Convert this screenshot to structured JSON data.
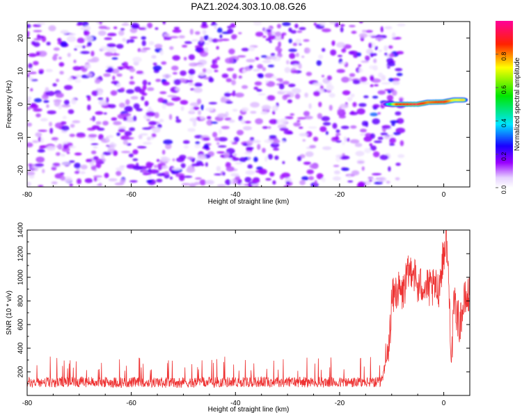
{
  "title": "PAZ1.2024.303.10.08.G26",
  "chart_data": [
    {
      "type": "heatmap",
      "xlabel": "Height of straight line (km)",
      "ylabel": "Frequency (Hz)",
      "xlim": [
        -80,
        5
      ],
      "ylim": [
        -25,
        25
      ],
      "xticks": [
        "-80",
        "-60",
        "-40",
        "-20",
        "0"
      ],
      "yticks": [
        "-20",
        "-10",
        "0",
        "10",
        "20"
      ],
      "colorbar": {
        "label": "Normalized spectral amplitude",
        "range": [
          0.0,
          1.0
        ],
        "ticks": [
          "0.0",
          "0.2",
          "0.4",
          "0.6",
          "0.8"
        ],
        "colormap": "rainbow (white-violet-blue-cyan-green-yellow-red-magenta)"
      },
      "features": {
        "noise_region_x": [
          -80,
          -10
        ],
        "noise_amplitude_typical": [
          0.05,
          0.2
        ],
        "signal_track": [
          {
            "x": -11,
            "y": 0.0,
            "amp": 0.3
          },
          {
            "x": -9,
            "y": 0.0,
            "amp": 0.85
          },
          {
            "x": -5,
            "y": 0.0,
            "amp": 0.95
          },
          {
            "x": -3,
            "y": 0.6,
            "amp": 0.8
          },
          {
            "x": 0,
            "y": 0.7,
            "amp": 0.9
          },
          {
            "x": 2,
            "y": 1.3,
            "amp": 0.7
          },
          {
            "x": 4,
            "y": 1.3,
            "amp": 0.75
          }
        ]
      }
    },
    {
      "type": "line",
      "xlabel": "Height of straight line (km)",
      "ylabel": "SNR (10 * v/v)",
      "xlim": [
        -80,
        5
      ],
      "ylim": [
        0,
        1400
      ],
      "xticks": [
        "-80",
        "-60",
        "-40",
        "-20",
        "0"
      ],
      "yticks": [
        "200",
        "400",
        "600",
        "800",
        "1000",
        "1200",
        "1400"
      ],
      "color": "#ee3333",
      "series": [
        {
          "x": [
            -80,
            -70,
            -60,
            -50,
            -40,
            -30,
            -20,
            -12,
            -10.5,
            -10,
            -9,
            -8,
            -7,
            -6,
            -5,
            -4,
            -3,
            -2,
            -1,
            0,
            0.5,
            1,
            1.5,
            2,
            3,
            4,
            5
          ],
          "values": [
            110,
            115,
            110,
            110,
            115,
            115,
            110,
            110,
            400,
            800,
            900,
            850,
            1000,
            1100,
            900,
            950,
            900,
            900,
            900,
            1200,
            1350,
            900,
            300,
            800,
            600,
            800,
            850
          ]
        }
      ]
    }
  ]
}
